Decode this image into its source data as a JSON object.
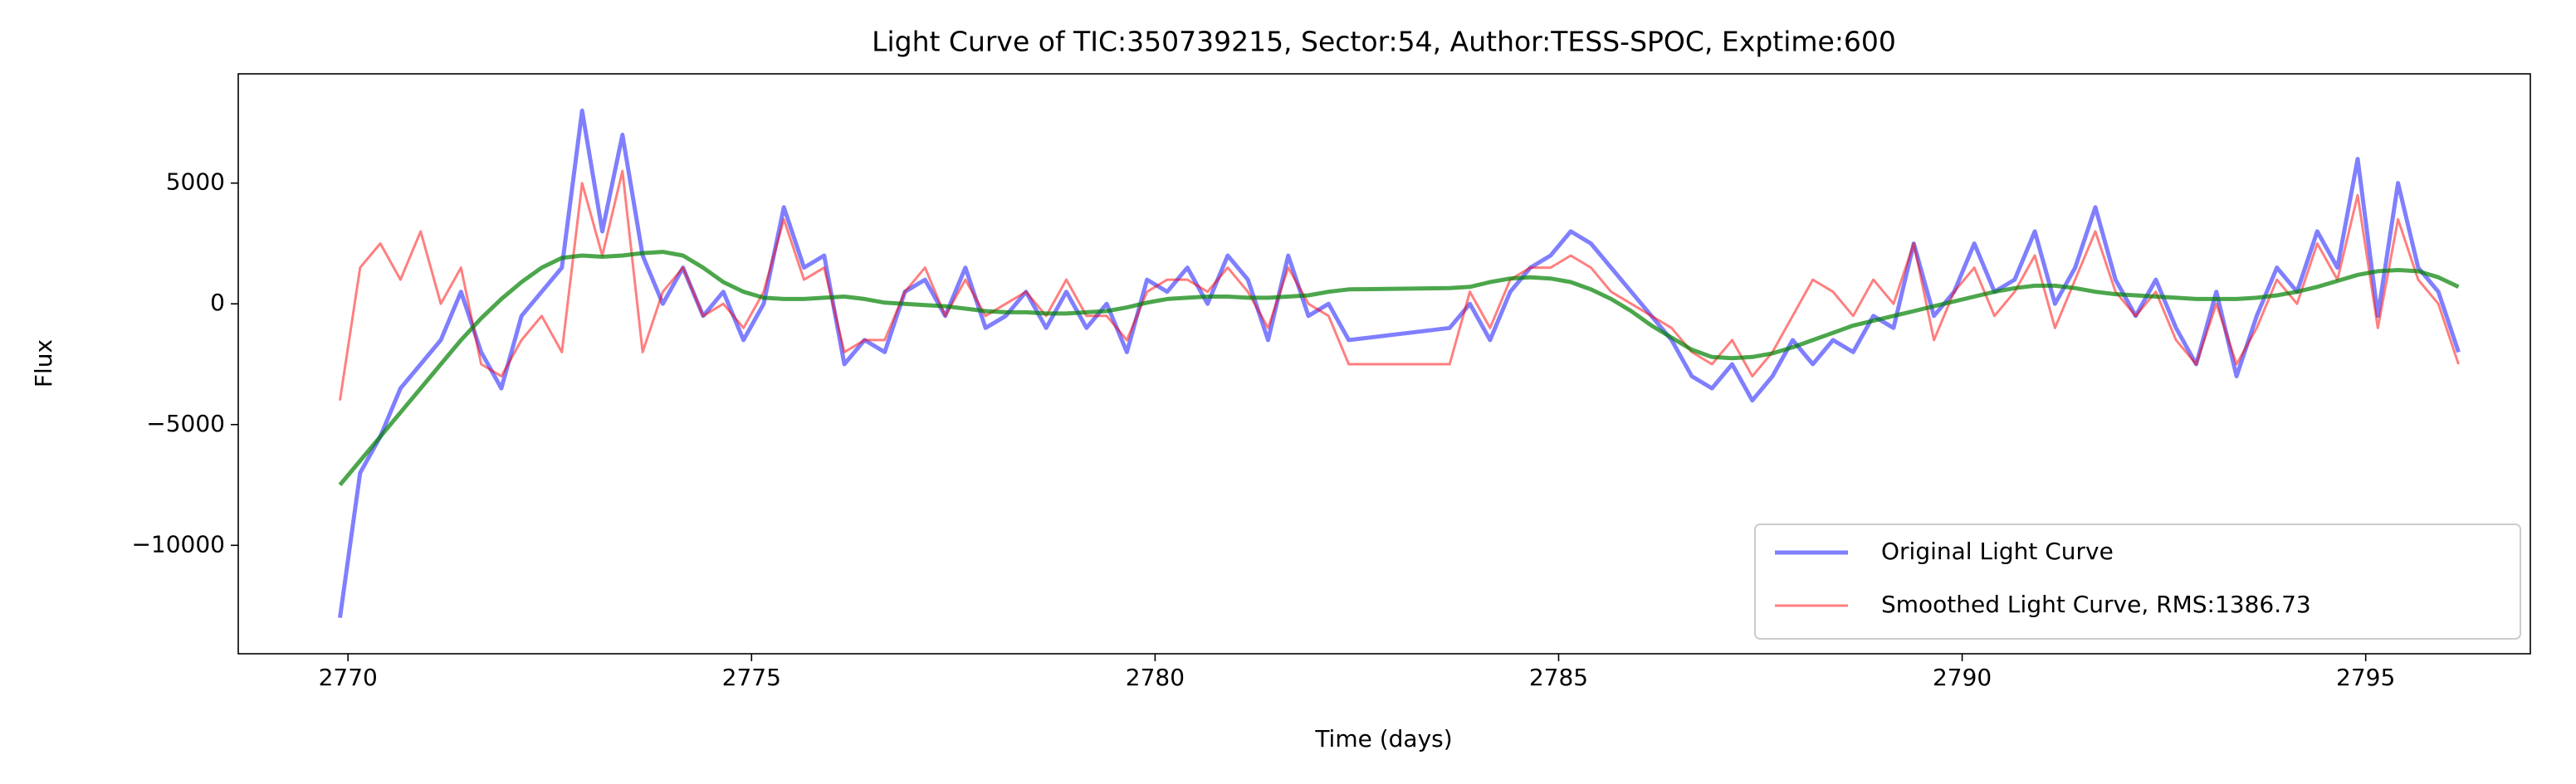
{
  "chart_data": {
    "type": "line",
    "title": "Light Curve of TIC:350739215, Sector:54, Author:TESS-SPOC, Exptime:600",
    "x_label": "Time (days)",
    "y_label": "Flux",
    "x": [
      2769.9,
      2770.15,
      2770.4,
      2770.65,
      2770.9,
      2771.15,
      2771.4,
      2771.65,
      2771.9,
      2772.15,
      2772.4,
      2772.65,
      2772.9,
      2773.15,
      2773.4,
      2773.65,
      2773.9,
      2774.15,
      2774.4,
      2774.65,
      2774.9,
      2775.15,
      2775.4,
      2775.65,
      2775.9,
      2776.15,
      2776.4,
      2776.65,
      2776.9,
      2777.15,
      2777.4,
      2777.65,
      2777.9,
      2778.15,
      2778.4,
      2778.65,
      2778.9,
      2779.15,
      2779.4,
      2779.65,
      2779.9,
      2780.15,
      2780.4,
      2780.65,
      2780.9,
      2781.15,
      2781.4,
      2781.65,
      2781.9,
      2782.15,
      2782.4,
      2783.65,
      2783.9,
      2784.15,
      2784.4,
      2784.65,
      2784.9,
      2785.15,
      2785.4,
      2785.65,
      2785.9,
      2786.15,
      2786.4,
      2786.65,
      2786.9,
      2787.15,
      2787.4,
      2787.65,
      2787.9,
      2788.15,
      2788.4,
      2788.65,
      2788.9,
      2789.15,
      2789.4,
      2789.65,
      2789.9,
      2790.15,
      2790.4,
      2790.65,
      2790.9,
      2791.15,
      2791.4,
      2791.65,
      2791.9,
      2792.15,
      2792.4,
      2792.65,
      2792.9,
      2793.15,
      2793.4,
      2793.65,
      2793.9,
      2794.15,
      2794.4,
      2794.65,
      2794.9,
      2795.15,
      2795.4,
      2795.65,
      2795.9,
      2796.15
    ],
    "series": [
      {
        "name": "Original Light Curve",
        "color": "#0000ff",
        "alpha": 0.5,
        "width": 5,
        "values": [
          -13000,
          -7000,
          -5500,
          -3500,
          -2500,
          -1500,
          500,
          -2000,
          -3500,
          -500,
          500,
          1500,
          8000,
          3000,
          7000,
          2000,
          0,
          1500,
          -500,
          500,
          -1500,
          0,
          4000,
          1500,
          2000,
          -2500,
          -1500,
          -2000,
          500,
          1000,
          -500,
          1500,
          -1000,
          -500,
          500,
          -1000,
          500,
          -1000,
          0,
          -2000,
          1000,
          500,
          1500,
          0,
          2000,
          1000,
          -1500,
          2000,
          -500,
          0,
          -1500,
          -1000,
          0,
          -1500,
          500,
          1500,
          2000,
          3000,
          2500,
          1500,
          500,
          -500,
          -1500,
          -3000,
          -3500,
          -2500,
          -4000,
          -3000,
          -1500,
          -2500,
          -1500,
          -2000,
          -500,
          -1000,
          2500,
          -500,
          500,
          2500,
          500,
          1000,
          3000,
          0,
          1500,
          4000,
          1000,
          -500,
          1000,
          -1000,
          -2500,
          500,
          -3000,
          -500,
          1500,
          500,
          3000,
          1500,
          6000,
          -500,
          5000,
          1500,
          500,
          -2000
        ]
      },
      {
        "name": "Smoothed Light Curve, RMS:1386.73",
        "color": "#ff0000",
        "alpha": 0.5,
        "width": 3,
        "values": [
          -4000,
          1500,
          2500,
          1000,
          3000,
          0,
          1500,
          -2500,
          -3000,
          -1500,
          -500,
          -2000,
          5000,
          2000,
          5500,
          -2000,
          500,
          1500,
          -500,
          0,
          -1000,
          500,
          3500,
          1000,
          1500,
          -2000,
          -1500,
          -1500,
          500,
          1500,
          -500,
          1000,
          -500,
          0,
          500,
          -500,
          1000,
          -500,
          -500,
          -1500,
          500,
          1000,
          1000,
          500,
          1500,
          500,
          -1000,
          1500,
          0,
          -500,
          -2500,
          -2500,
          500,
          -1000,
          1000,
          1500,
          1500,
          2000,
          1500,
          500,
          0,
          -500,
          -1000,
          -2000,
          -2500,
          -1500,
          -3000,
          -2000,
          -500,
          1000,
          500,
          -500,
          1000,
          0,
          2500,
          -1500,
          500,
          1500,
          -500,
          500,
          2000,
          -1000,
          1000,
          3000,
          500,
          -500,
          500,
          -1500,
          -2500,
          0,
          -2500,
          -1000,
          1000,
          0,
          2500,
          1000,
          4500,
          -1000,
          3500,
          1000,
          0,
          -2500
        ]
      },
      {
        "color": "#008000",
        "alpha": 0.7,
        "width": 5,
        "values": [
          -7500,
          -6500,
          -5500,
          -4500,
          -3500,
          -2500,
          -1500,
          -600,
          200,
          900,
          1500,
          1900,
          2000,
          1950,
          2000,
          2100,
          2150,
          2000,
          1500,
          900,
          500,
          250,
          200,
          200,
          250,
          300,
          200,
          50,
          0,
          -50,
          -100,
          -200,
          -300,
          -350,
          -350,
          -400,
          -400,
          -350,
          -300,
          -150,
          50,
          200,
          250,
          300,
          300,
          250,
          250,
          300,
          350,
          500,
          600,
          650,
          700,
          900,
          1050,
          1100,
          1050,
          900,
          600,
          200,
          -300,
          -900,
          -1400,
          -1900,
          -2200,
          -2250,
          -2200,
          -2050,
          -1800,
          -1500,
          -1200,
          -900,
          -700,
          -500,
          -300,
          -100,
          100,
          300,
          500,
          650,
          750,
          750,
          650,
          500,
          400,
          350,
          300,
          250,
          200,
          200,
          200,
          250,
          350,
          500,
          700,
          950,
          1200,
          1350,
          1400,
          1350,
          1100,
          700
        ]
      }
    ],
    "xlim": [
      2768.64,
      2797.04
    ],
    "ylim": [
      -14490,
      9524
    ],
    "xticks": [
      2770,
      2775,
      2780,
      2785,
      2790,
      2795
    ],
    "yticks": [
      {
        "value": -10000,
        "label": "−10000"
      },
      {
        "value": -5000,
        "label": "−5000"
      },
      0,
      5000
    ],
    "legend": "lower right"
  }
}
